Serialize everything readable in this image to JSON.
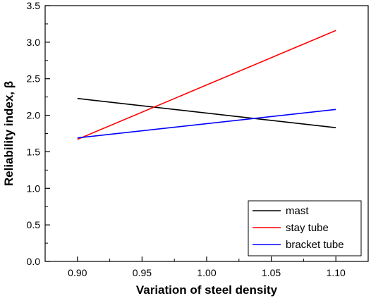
{
  "chart_data": {
    "type": "line",
    "title": "",
    "xlabel": "Variation of steel density",
    "ylabel": "Reliability index, β",
    "xlim": [
      0.875,
      1.125
    ],
    "ylim": [
      0.0,
      3.5
    ],
    "x_ticks": [
      0.9,
      0.95,
      1.0,
      1.05,
      1.1
    ],
    "x_tick_labels": [
      "0.90",
      "0.95",
      "1.00",
      "1.05",
      "1.10"
    ],
    "y_ticks": [
      0.0,
      0.5,
      1.0,
      1.5,
      2.0,
      2.5,
      3.0,
      3.5
    ],
    "y_tick_labels": [
      "0.0",
      "0.5",
      "1.0",
      "1.5",
      "2.0",
      "2.5",
      "3.0",
      "3.5"
    ],
    "grid": false,
    "legend_position": "bottom-right",
    "series": [
      {
        "name": "mast",
        "color": "#000000",
        "x": [
          0.9,
          1.1
        ],
        "y": [
          2.23,
          1.83
        ]
      },
      {
        "name": "stay tube",
        "color": "#ff0000",
        "x": [
          0.9,
          1.1
        ],
        "y": [
          1.67,
          3.16
        ]
      },
      {
        "name": "bracket tube",
        "color": "#0000ff",
        "x": [
          0.9,
          1.1
        ],
        "y": [
          1.69,
          2.08
        ]
      }
    ]
  }
}
